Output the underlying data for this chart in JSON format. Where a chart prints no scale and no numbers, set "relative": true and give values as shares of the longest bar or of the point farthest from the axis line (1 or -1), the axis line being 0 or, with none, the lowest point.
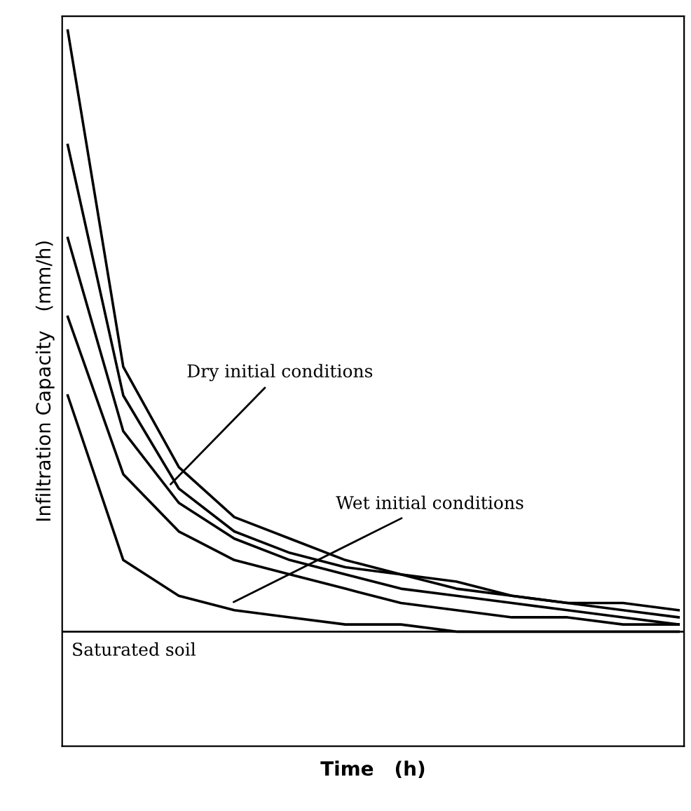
{
  "chart_data": {
    "type": "line",
    "relative": true,
    "xlabel": "Time   (h)",
    "ylabel": "Infiltration Capacity   (mm/h)",
    "categories": [
      null,
      null,
      null,
      null,
      null,
      null,
      null,
      null,
      null,
      null,
      null,
      null
    ],
    "legend": false,
    "marker": "none",
    "line_style": "solid",
    "series": [
      {
        "color": "#000000",
        "values": [
          1.0,
          0.53,
          0.39,
          0.32,
          0.29,
          0.26,
          0.24,
          0.23,
          0.21,
          0.2,
          0.2,
          0.19
        ]
      },
      {
        "color": "#000000",
        "values": [
          0.84,
          0.49,
          0.36,
          0.3,
          0.27,
          0.25,
          0.24,
          0.22,
          0.21,
          0.2,
          0.19,
          0.18
        ]
      },
      {
        "color": "#000000",
        "values": [
          0.71,
          0.44,
          0.34,
          0.29,
          0.26,
          0.24,
          0.22,
          0.21,
          0.2,
          0.19,
          0.18,
          0.17
        ]
      },
      {
        "color": "#000000",
        "values": [
          0.6,
          0.38,
          0.3,
          0.26,
          0.24,
          0.22,
          0.2,
          0.19,
          0.18,
          0.18,
          0.17,
          0.17
        ]
      },
      {
        "color": "#000000",
        "values": [
          0.49,
          0.26,
          0.21,
          0.19,
          0.18,
          0.17,
          0.17,
          0.16,
          0.16,
          0.16,
          0.16,
          0.16
        ]
      }
    ],
    "ref_lines": [
      {
        "axis": "y",
        "value": 0.16,
        "label": "Saturated soil",
        "color": "#000000"
      }
    ],
    "annotations": [
      "Dry initial conditions",
      "Wet initial conditions"
    ]
  }
}
